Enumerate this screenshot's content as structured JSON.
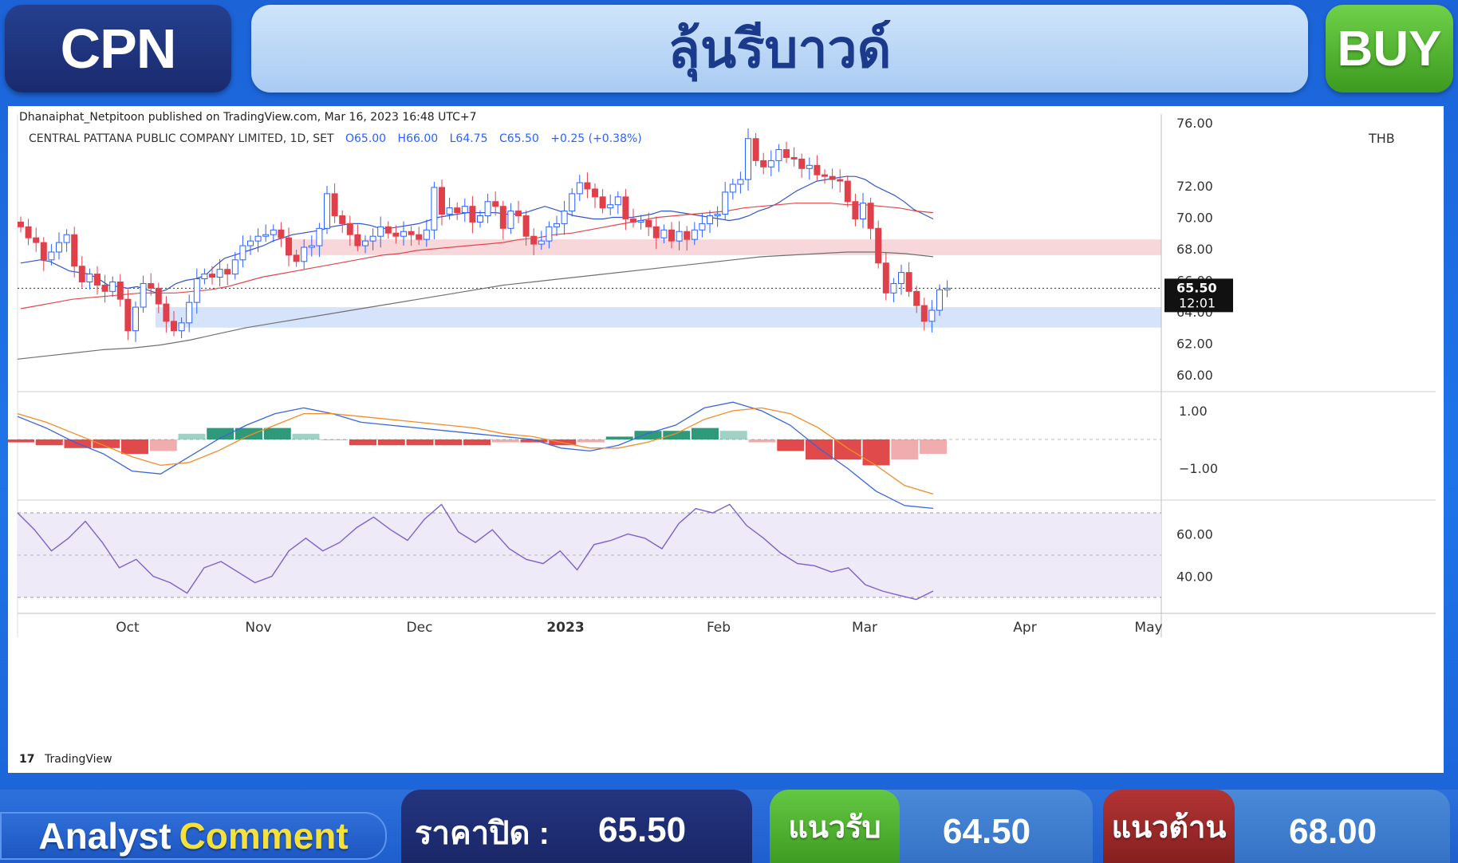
{
  "header": {
    "ticker": "CPN",
    "title": "ลุ้นรีบาวด์",
    "signal": "BUY"
  },
  "colors": {
    "bull": "#2962ff",
    "bear": "#e0404a",
    "sma_fast": "#3355cc",
    "sma_mid": "#e04848",
    "sma_slow": "#707070",
    "resistance_zone": "#f8d7da",
    "support_zone": "#d6e4fb",
    "macd_line": "#3a66dd",
    "signal_line": "#f28c28",
    "hist_pos": "#2e9a7a",
    "hist_neg": "#e04a4a",
    "rsi_line": "#7e60c8",
    "rsi_band": "#efeaf8"
  },
  "chart_data": {
    "type": "candlestick",
    "credit": "Dhanaiphat_Netpitoon published on TradingView.com, Mar 16, 2023 16:48 UTC+7",
    "info_name": "CENTRAL PATTANA PUBLIC COMPANY LIMITED, 1D, SET",
    "ohlc_text": {
      "o": "O65.00",
      "h": "H66.00",
      "l": "L64.75",
      "c": "C65.50",
      "chg": "+0.25 (+0.38%)"
    },
    "currency": "THB",
    "last_price_label": "65.50",
    "countdown_label": "12:01",
    "price_ticks": [
      "76.00",
      "72.00",
      "70.00",
      "68.00",
      "66.00",
      "64.00",
      "62.00",
      "60.00"
    ],
    "macd_ticks": [
      "1.00",
      "−1.00"
    ],
    "rsi_ticks": [
      "60.00",
      "40.00"
    ],
    "x_ticks": [
      "Oct",
      "Nov",
      "Dec",
      "2023",
      "Feb",
      "Mar",
      "Apr",
      "May"
    ],
    "zones": {
      "resistance": [
        67.6,
        68.6
      ],
      "support": [
        63.0,
        64.3
      ]
    },
    "last_close": 65.5,
    "closes": [
      69.4,
      68.7,
      68.4,
      67.3,
      67.8,
      68.4,
      68.9,
      66.9,
      65.9,
      66.4,
      65.7,
      65.3,
      65.9,
      64.8,
      62.8,
      64.3,
      65.8,
      65.5,
      64.5,
      63.4,
      62.8,
      63.3,
      64.6,
      66.1,
      66.4,
      66.2,
      66.7,
      66.4,
      67.3,
      68.2,
      68.5,
      68.8,
      68.9,
      69.2,
      68.7,
      67.6,
      67.2,
      68.1,
      68.2,
      69.3,
      71.5,
      70.1,
      69.6,
      68.9,
      68.2,
      68.5,
      68.8,
      69.4,
      69.0,
      68.8,
      69.1,
      68.9,
      68.6,
      69.2,
      71.9,
      70.2,
      70.6,
      70.3,
      70.7,
      69.7,
      70.1,
      71.0,
      70.7,
      69.3,
      70.4,
      70.1,
      68.8,
      68.3,
      68.5,
      69.4,
      69.6,
      70.4,
      71.5,
      72.2,
      71.8,
      71.3,
      70.6,
      70.8,
      71.3,
      69.9,
      69.7,
      69.8,
      69.4,
      68.7,
      69.2,
      68.5,
      69.1,
      68.6,
      69.2,
      69.6,
      70.1,
      70.2,
      71.6,
      72.1,
      72.4,
      75.0,
      73.6,
      73.2,
      73.6,
      74.3,
      73.8,
      73.7,
      73.1,
      73.3,
      72.7,
      72.6,
      72.4,
      72.3,
      71.0,
      69.9,
      70.9,
      69.3,
      67.1,
      65.2,
      65.8,
      66.5,
      65.3,
      64.4,
      63.4,
      64.1,
      65.4,
      65.5
    ],
    "sma_fast": [
      67.1,
      67.2,
      67.3,
      67.2,
      66.9,
      66.6,
      66.5,
      66.4,
      66.1,
      65.7,
      65.6,
      65.5,
      65.6,
      65.4,
      65.2,
      65.4,
      65.8,
      66.0,
      66.1,
      66.3,
      66.9,
      67.4,
      67.6,
      67.8,
      68.0,
      68.2,
      68.5,
      68.7,
      68.9,
      69.0,
      69.1,
      69.2,
      69.4,
      69.5,
      69.6,
      69.6,
      69.5,
      69.3,
      69.3,
      69.4,
      69.5,
      69.6,
      69.8,
      70.0,
      70.1,
      70.2,
      70.3,
      70.3,
      70.3,
      70.3,
      70.2,
      70.2,
      70.3,
      70.5,
      70.7,
      70.5,
      70.3,
      70.1,
      70.0,
      69.9,
      69.9,
      70.0,
      70.0,
      70.0,
      70.1,
      70.2,
      70.4,
      70.4,
      70.3,
      70.2,
      70.1,
      70.0,
      69.9,
      69.8,
      69.9,
      70.1,
      70.4,
      70.6,
      70.9,
      71.3,
      71.7,
      72.0,
      72.3,
      72.4,
      72.5,
      72.6,
      72.6,
      72.4,
      72.0,
      71.7,
      71.4,
      71.0,
      70.5,
      70.2,
      69.9
    ],
    "sma_mid": [
      64.2,
      64.4,
      64.6,
      64.8,
      64.9,
      65.0,
      65.1,
      65.2,
      65.2,
      65.2,
      65.3,
      65.4,
      65.6,
      65.9,
      66.2,
      66.4,
      66.6,
      66.8,
      67.0,
      67.2,
      67.4,
      67.6,
      67.7,
      67.9,
      68.0,
      68.1,
      68.2,
      68.3,
      68.4,
      68.6,
      68.7,
      68.9,
      69.0,
      69.2,
      69.4,
      69.6,
      69.8,
      70.0,
      70.1,
      70.2,
      70.3,
      70.4,
      70.6,
      70.7,
      70.8,
      70.9,
      70.9,
      70.9,
      70.8,
      70.8,
      70.7,
      70.6,
      70.4,
      70.3
    ],
    "sma_slow": [
      61.0,
      61.2,
      61.4,
      61.6,
      61.7,
      61.9,
      62.2,
      62.6,
      63.0,
      63.3,
      63.6,
      63.9,
      64.2,
      64.5,
      64.8,
      65.1,
      65.4,
      65.7,
      65.9,
      66.1,
      66.3,
      66.5,
      66.7,
      66.9,
      67.1,
      67.3,
      67.5,
      67.6,
      67.7,
      67.8,
      67.8,
      67.7,
      67.5
    ],
    "macd": [
      0.8,
      0.4,
      -0.1,
      -0.5,
      -1.1,
      -1.2,
      -0.6,
      0.0,
      0.5,
      0.9,
      1.1,
      0.9,
      0.6,
      0.5,
      0.4,
      0.3,
      0.2,
      0.1,
      0.0,
      -0.3,
      -0.4,
      -0.2,
      0.2,
      0.5,
      1.1,
      1.3,
      1.0,
      0.5,
      -0.3,
      -1.0,
      -1.8,
      -2.3,
      -2.4
    ],
    "signal": [
      0.9,
      0.6,
      0.2,
      -0.2,
      -0.6,
      -0.9,
      -0.8,
      -0.4,
      0.1,
      0.5,
      0.9,
      0.9,
      0.8,
      0.7,
      0.6,
      0.5,
      0.4,
      0.2,
      0.1,
      -0.1,
      -0.3,
      -0.3,
      -0.1,
      0.2,
      0.7,
      1.0,
      1.1,
      0.9,
      0.4,
      -0.3,
      -0.9,
      -1.6,
      -1.9
    ],
    "histogram": [
      -0.1,
      -0.2,
      -0.3,
      -0.3,
      -0.5,
      -0.4,
      0.2,
      0.4,
      0.4,
      0.4,
      0.2,
      0.0,
      -0.2,
      -0.2,
      -0.2,
      -0.2,
      -0.2,
      -0.1,
      -0.1,
      -0.2,
      -0.1,
      0.1,
      0.3,
      0.3,
      0.4,
      0.3,
      -0.1,
      -0.4,
      -0.7,
      -0.7,
      -0.9,
      -0.7,
      -0.5
    ],
    "rsi": [
      70,
      62,
      52,
      58,
      66,
      56,
      44,
      48,
      40,
      37,
      32,
      44,
      47,
      42,
      37,
      40,
      52,
      58,
      52,
      56,
      63,
      68,
      62,
      57,
      67,
      74,
      61,
      56,
      62,
      53,
      48,
      46,
      52,
      43,
      55,
      57,
      60,
      58,
      53,
      65,
      72,
      70,
      74,
      64,
      58,
      51,
      46,
      45,
      42,
      44,
      36,
      33,
      31,
      29,
      33
    ]
  },
  "bottom": {
    "analyst_1": "Analyst",
    "analyst_2": "Comment",
    "close_label": "ราคาปิด :",
    "close_value": "65.50",
    "support_label": "แนวรับ",
    "support_value": "64.50",
    "resistance_label": "แนวต้าน",
    "resistance_value": "68.00"
  }
}
